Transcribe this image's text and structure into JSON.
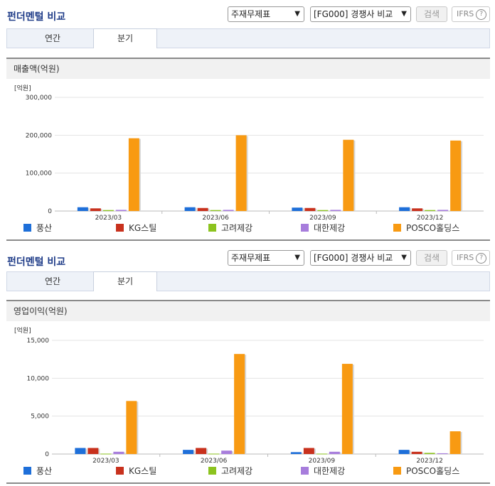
{
  "header": {
    "title": "펀더멘털 비교",
    "select1": "주재무제표",
    "select2": "[FG000] 경쟁사 비교",
    "search_label": "검색",
    "ifrs_label": "IFRS",
    "help_label": "?"
  },
  "tabs": [
    "연간",
    "분기"
  ],
  "active_tab": "분기",
  "unit_label": "[억원]",
  "colors": {
    "풍산": "#1e6fd9",
    "KG스틸": "#c8311d",
    "고려제강": "#8cc31f",
    "대한제강": "#a77ddc",
    "POSCO홀딩스": "#f89a12"
  },
  "chart_data": [
    {
      "type": "bar",
      "title": "매출액(억원)",
      "categories": [
        "2023/03",
        "2023/06",
        "2023/09",
        "2023/12"
      ],
      "ylim": [
        0,
        300000
      ],
      "yticks": [
        0,
        100000,
        200000,
        300000
      ],
      "ytick_labels": [
        "0",
        "100,000",
        "200,000",
        "300,000"
      ],
      "legend_position": "bottom",
      "series": [
        {
          "name": "풍산",
          "values": [
            10000,
            10000,
            9000,
            10000
          ]
        },
        {
          "name": "KG스틸",
          "values": [
            7000,
            8000,
            8000,
            7000
          ]
        },
        {
          "name": "고려제강",
          "values": [
            2500,
            2500,
            2500,
            2500
          ]
        },
        {
          "name": "대한제강",
          "values": [
            3000,
            3000,
            3000,
            3000
          ]
        },
        {
          "name": "POSCO홀딩스",
          "values": [
            192000,
            200000,
            188000,
            186000
          ]
        }
      ]
    },
    {
      "type": "bar",
      "title": "영업이익(억원)",
      "categories": [
        "2023/03",
        "2023/06",
        "2023/09",
        "2023/12"
      ],
      "ylim": [
        0,
        15000
      ],
      "yticks": [
        0,
        5000,
        10000,
        15000
      ],
      "ytick_labels": [
        "0",
        "5,000",
        "10,000",
        "15,000"
      ],
      "legend_position": "bottom",
      "series": [
        {
          "name": "풍산",
          "values": [
            800,
            550,
            250,
            550
          ]
        },
        {
          "name": "KG스틸",
          "values": [
            800,
            800,
            800,
            300
          ]
        },
        {
          "name": "고려제강",
          "values": [
            50,
            50,
            50,
            150
          ]
        },
        {
          "name": "대한제강",
          "values": [
            300,
            450,
            300,
            100
          ]
        },
        {
          "name": "POSCO홀딩스",
          "values": [
            7000,
            13200,
            11900,
            3000
          ]
        }
      ]
    }
  ]
}
